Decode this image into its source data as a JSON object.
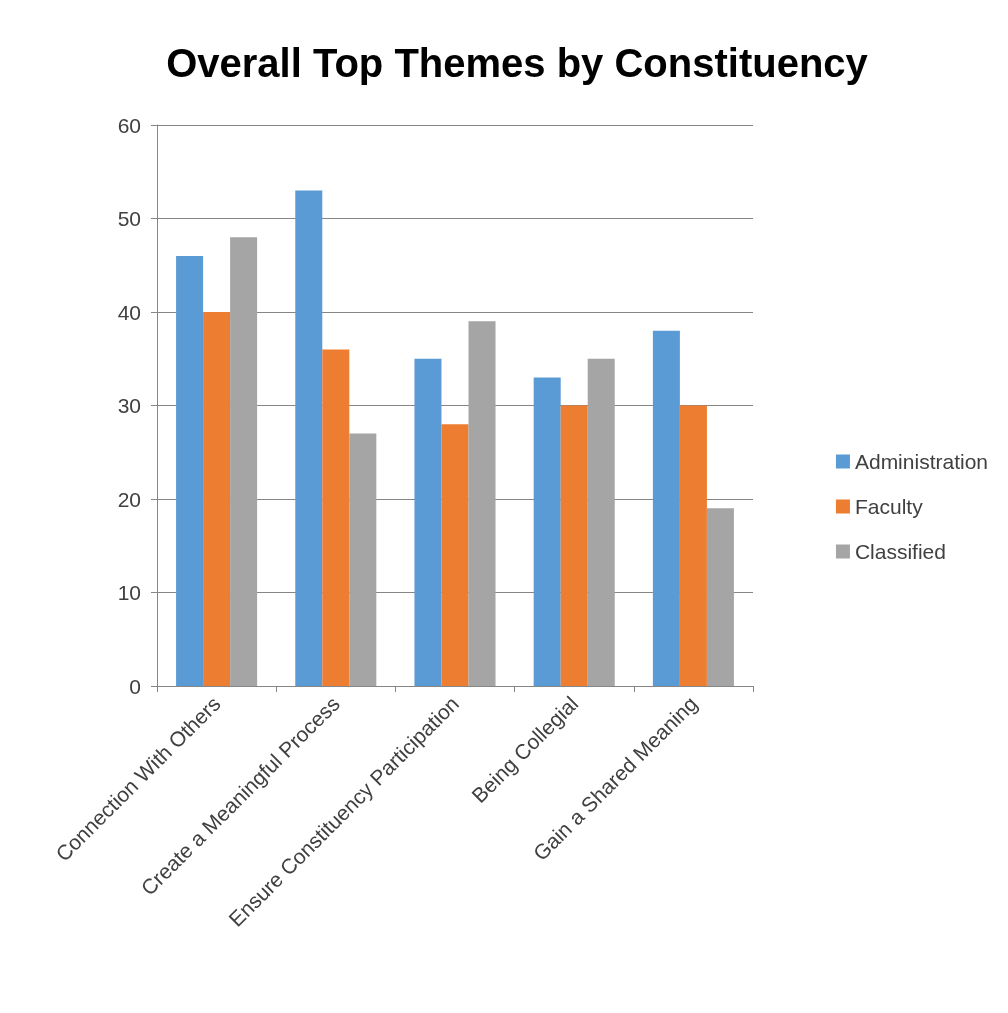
{
  "chart_data": {
    "type": "bar",
    "title": "Overall Top Themes by Constituency",
    "categories": [
      "Connection With Others",
      "Create a Meaningful Process",
      "Ensure Constituency Participation",
      "Being Collegial",
      "Gain a Shared Meaning"
    ],
    "series": [
      {
        "name": "Administration",
        "color": "#5b9bd5",
        "values": [
          46,
          53,
          35,
          33,
          38
        ]
      },
      {
        "name": "Faculty",
        "color": "#ed7d31",
        "values": [
          40,
          36,
          28,
          30,
          30
        ]
      },
      {
        "name": "Classified",
        "color": "#a5a5a5",
        "values": [
          48,
          27,
          39,
          35,
          19
        ]
      }
    ],
    "ylim": [
      0,
      60
    ],
    "yticks": [
      0,
      10,
      20,
      30,
      40,
      50,
      60
    ],
    "grid": "y",
    "legend": "right"
  }
}
